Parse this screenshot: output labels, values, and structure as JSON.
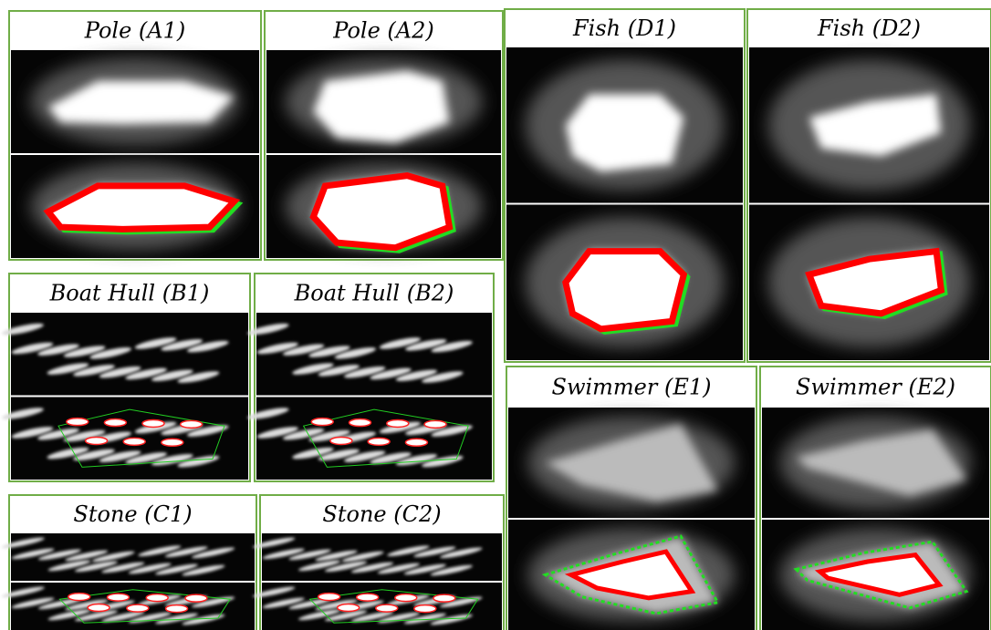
{
  "panels": [
    {
      "title": "Pole (A1)"
    },
    {
      "title": "Pole (A2)"
    },
    {
      "title": "Boat Hull (B1)"
    },
    {
      "title": "Boat Hull (B2)"
    },
    {
      "title": "Stone (C1)"
    },
    {
      "title": "Stone (C2)"
    },
    {
      "title": "Fish (D1)"
    },
    {
      "title": "Fish (D2)"
    },
    {
      "title": "Swimmer (E1)"
    },
    {
      "title": "Swimmer (E2)"
    }
  ]
}
